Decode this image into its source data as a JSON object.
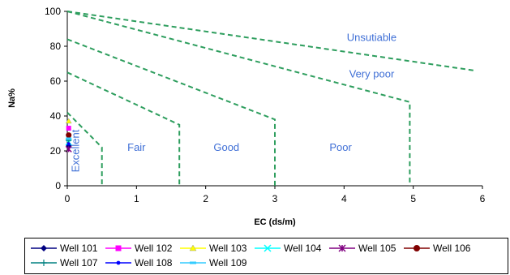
{
  "chart_data": {
    "type": "line",
    "title": "",
    "xlabel": "EC (ds/m)",
    "ylabel": "Na%",
    "xlim": [
      0,
      6
    ],
    "ylim": [
      0,
      100
    ],
    "x_ticks": [
      "0",
      "1",
      "2",
      "3",
      "4",
      "5",
      "6"
    ],
    "y_ticks": [
      "0",
      "20",
      "40",
      "60",
      "80",
      "100"
    ],
    "boundary_color": "#2e9e5e",
    "label_color": "#3f6fd6",
    "boundaries": [
      {
        "points": [
          [
            0,
            42
          ],
          [
            0.5,
            22
          ],
          [
            0.5,
            0
          ]
        ]
      },
      {
        "points": [
          [
            0,
            65
          ],
          [
            1.62,
            35
          ],
          [
            1.62,
            0
          ]
        ]
      },
      {
        "points": [
          [
            0,
            84
          ],
          [
            3.0,
            38
          ],
          [
            3.0,
            0
          ]
        ]
      },
      {
        "points": [
          [
            0,
            100
          ],
          [
            4.95,
            48
          ],
          [
            4.95,
            0
          ]
        ]
      },
      {
        "points": [
          [
            0,
            100
          ],
          [
            5.9,
            66
          ]
        ]
      }
    ],
    "regions": [
      {
        "label": "Unsutiable",
        "x": 4.4,
        "y": 83
      },
      {
        "label": "Very poor",
        "x": 4.4,
        "y": 62
      },
      {
        "label": "Poor",
        "x": 3.95,
        "y": 20
      },
      {
        "label": "Good",
        "x": 2.3,
        "y": 20
      },
      {
        "label": "Fair",
        "x": 1.0,
        "y": 20
      },
      {
        "label": "Excellent",
        "x": 0.17,
        "y": 20,
        "vertical": true
      }
    ],
    "series": [
      {
        "name": "Well 101",
        "color": "#000080",
        "marker": "diamond",
        "x": [
          0.02
        ],
        "y": [
          23
        ]
      },
      {
        "name": "Well 102",
        "color": "#ff00ff",
        "marker": "square",
        "x": [
          0.02
        ],
        "y": [
          33
        ]
      },
      {
        "name": "Well 103",
        "color": "#ffff00",
        "marker": "triangle",
        "x": [
          0.02
        ],
        "y": [
          37
        ]
      },
      {
        "name": "Well 104",
        "color": "#00ffff",
        "marker": "x",
        "x": [
          0.02
        ],
        "y": [
          25
        ]
      },
      {
        "name": "Well 105",
        "color": "#800080",
        "marker": "star",
        "x": [
          0.02
        ],
        "y": [
          21
        ]
      },
      {
        "name": "Well 106",
        "color": "#800000",
        "marker": "circle",
        "x": [
          0.02
        ],
        "y": [
          29
        ]
      },
      {
        "name": "Well 107",
        "color": "#008080",
        "marker": "plus",
        "x": [
          0.02
        ],
        "y": [
          26
        ]
      },
      {
        "name": "Well 108",
        "color": "#0000ff",
        "marker": "dot",
        "x": [
          0.02
        ],
        "y": [
          24
        ]
      },
      {
        "name": "Well 109",
        "color": "#33ccff",
        "marker": "dash",
        "x": [
          0.02
        ],
        "y": [
          27
        ]
      }
    ]
  }
}
